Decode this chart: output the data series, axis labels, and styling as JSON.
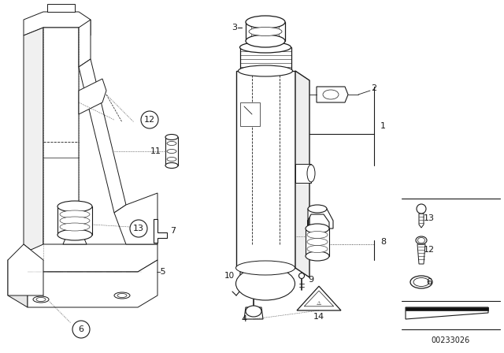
{
  "bg_color": "#ffffff",
  "line_color": "#1a1a1a",
  "diagram_code": "00233026",
  "fig_width": 6.4,
  "fig_height": 4.48,
  "dpi": 100
}
